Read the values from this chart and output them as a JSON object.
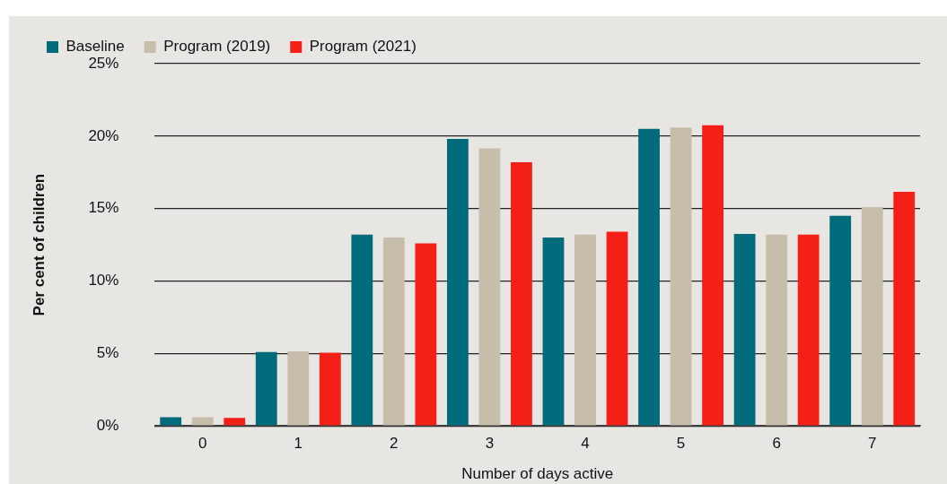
{
  "chart_data": {
    "type": "bar",
    "xlabel": "Number of days active",
    "ylabel": "Per cent of children",
    "categories": [
      "0",
      "1",
      "2",
      "3",
      "4",
      "5",
      "6",
      "7"
    ],
    "series": [
      {
        "name": "Baseline",
        "color": "#006b7a",
        "values": [
          0.6,
          5.1,
          13.2,
          19.8,
          13.0,
          20.5,
          13.25,
          14.5
        ]
      },
      {
        "name": "Program (2019)",
        "color": "#c6beab",
        "values": [
          0.6,
          5.15,
          13.0,
          19.15,
          13.2,
          20.6,
          13.2,
          15.1
        ]
      },
      {
        "name": "Program (2021)",
        "color": "#f41f17",
        "values": [
          0.55,
          5.05,
          12.6,
          18.2,
          13.4,
          20.75,
          13.2,
          16.15
        ]
      }
    ],
    "ylim": [
      0,
      25
    ],
    "yticks": [
      {
        "value": 0,
        "label": "0%"
      },
      {
        "value": 5,
        "label": "5%"
      },
      {
        "value": 10,
        "label": "10%"
      },
      {
        "value": 15,
        "label": "15%"
      },
      {
        "value": 20,
        "label": "20%"
      },
      {
        "value": 25,
        "label": "25%"
      }
    ],
    "grid": "y",
    "legend": "top left"
  }
}
